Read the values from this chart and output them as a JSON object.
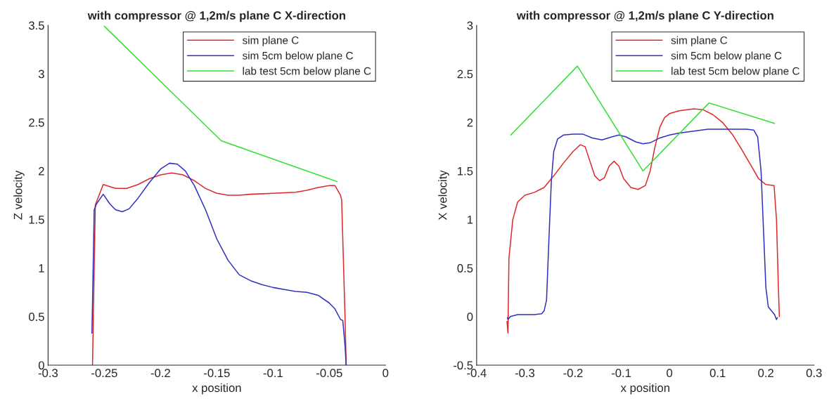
{
  "chart_data": [
    {
      "type": "line",
      "title": "with compressor @ 1,2m/s plane C X-direction",
      "xlabel": "x position",
      "ylabel": "Z velocity",
      "xlim": [
        -0.3,
        0
      ],
      "xticks": [
        -0.3,
        -0.25,
        -0.2,
        -0.15,
        -0.1,
        -0.05,
        0
      ],
      "ylim": [
        0,
        3.5
      ],
      "yticks": [
        0,
        0.5,
        1,
        1.5,
        2,
        2.5,
        3,
        3.5
      ],
      "grid": false,
      "legend": "top right",
      "series": [
        {
          "name": "sim plane C",
          "color": "#dd2a2a",
          "x": [
            -0.2605,
            -0.258,
            -0.251,
            -0.24,
            -0.23,
            -0.22,
            -0.21,
            -0.2,
            -0.19,
            -0.18,
            -0.17,
            -0.16,
            -0.15,
            -0.14,
            -0.13,
            -0.12,
            -0.1,
            -0.08,
            -0.07,
            -0.06,
            -0.05,
            -0.045,
            -0.04,
            -0.039,
            -0.036,
            -0.035
          ],
          "values": [
            0,
            1.65,
            1.86,
            1.82,
            1.82,
            1.86,
            1.92,
            1.96,
            1.98,
            1.96,
            1.9,
            1.82,
            1.77,
            1.75,
            1.75,
            1.76,
            1.77,
            1.78,
            1.8,
            1.83,
            1.85,
            1.85,
            1.75,
            1.7,
            0.5,
            0
          ]
        },
        {
          "name": "sim 5cm below plane C",
          "color": "#3030c0",
          "x": [
            -0.261,
            -0.259,
            -0.257,
            -0.251,
            -0.245,
            -0.24,
            -0.234,
            -0.228,
            -0.22,
            -0.21,
            -0.2,
            -0.192,
            -0.185,
            -0.178,
            -0.17,
            -0.16,
            -0.15,
            -0.14,
            -0.13,
            -0.12,
            -0.11,
            -0.1,
            -0.09,
            -0.08,
            -0.07,
            -0.06,
            -0.05,
            -0.045,
            -0.04,
            -0.038,
            -0.036,
            -0.035
          ],
          "values": [
            0.33,
            1.6,
            1.66,
            1.76,
            1.66,
            1.6,
            1.58,
            1.61,
            1.72,
            1.88,
            2.02,
            2.08,
            2.07,
            2.0,
            1.85,
            1.6,
            1.3,
            1.08,
            0.93,
            0.87,
            0.83,
            0.8,
            0.78,
            0.76,
            0.75,
            0.72,
            0.64,
            0.58,
            0.47,
            0.46,
            0.2,
            0
          ]
        },
        {
          "name": "lab test 5cm below plane C",
          "color": "#30e030",
          "x": [
            -0.25,
            -0.146,
            -0.043
          ],
          "values": [
            3.49,
            2.31,
            1.89
          ]
        }
      ]
    },
    {
      "type": "line",
      "title": "with compressor @ 1,2m/s plane C Y-direction",
      "xlabel": "x position",
      "ylabel": "X velocity",
      "xlim": [
        -0.4,
        0.3
      ],
      "xticks": [
        -0.4,
        -0.3,
        -0.2,
        -0.1,
        0,
        0.1,
        0.2,
        0.3
      ],
      "ylim": [
        -0.5,
        3
      ],
      "yticks": [
        -0.5,
        0,
        0.5,
        1,
        1.5,
        2,
        2.5,
        3
      ],
      "grid": false,
      "legend": "top right",
      "series": [
        {
          "name": "sim plane C",
          "color": "#dd2a2a",
          "x": [
            -0.337,
            -0.335,
            -0.333,
            -0.325,
            -0.315,
            -0.3,
            -0.28,
            -0.26,
            -0.24,
            -0.22,
            -0.2,
            -0.185,
            -0.175,
            -0.165,
            -0.155,
            -0.145,
            -0.135,
            -0.125,
            -0.115,
            -0.105,
            -0.095,
            -0.08,
            -0.065,
            -0.05,
            -0.04,
            -0.03,
            -0.02,
            -0.01,
            0.0,
            0.02,
            0.05,
            0.07,
            0.09,
            0.11,
            0.13,
            0.15,
            0.17,
            0.185,
            0.2,
            0.217,
            0.222,
            0.226,
            0.228
          ],
          "values": [
            -0.05,
            -0.17,
            0.6,
            1.0,
            1.18,
            1.25,
            1.28,
            1.33,
            1.45,
            1.58,
            1.7,
            1.77,
            1.75,
            1.6,
            1.45,
            1.4,
            1.43,
            1.55,
            1.6,
            1.55,
            1.42,
            1.33,
            1.31,
            1.35,
            1.5,
            1.75,
            1.95,
            2.05,
            2.09,
            2.12,
            2.14,
            2.13,
            2.08,
            2.0,
            1.88,
            1.72,
            1.55,
            1.42,
            1.36,
            1.35,
            1.0,
            0.3,
            0
          ]
        },
        {
          "name": "sim 5cm below plane C",
          "color": "#3030c0",
          "x": [
            -0.336,
            -0.335,
            -0.33,
            -0.315,
            -0.3,
            -0.28,
            -0.265,
            -0.26,
            -0.255,
            -0.25,
            -0.245,
            -0.24,
            -0.232,
            -0.22,
            -0.2,
            -0.18,
            -0.16,
            -0.14,
            -0.12,
            -0.105,
            -0.09,
            -0.07,
            -0.055,
            -0.04,
            -0.02,
            0.0,
            0.02,
            0.05,
            0.08,
            0.12,
            0.16,
            0.175,
            0.183,
            0.19,
            0.195,
            0.2,
            0.205,
            0.21,
            0.218,
            0.222,
            0.224
          ],
          "values": [
            -0.01,
            -0.03,
            0.0,
            0.02,
            0.02,
            0.02,
            0.03,
            0.06,
            0.17,
            0.8,
            1.4,
            1.7,
            1.83,
            1.87,
            1.88,
            1.88,
            1.84,
            1.82,
            1.85,
            1.87,
            1.85,
            1.8,
            1.78,
            1.79,
            1.84,
            1.87,
            1.89,
            1.91,
            1.93,
            1.93,
            1.93,
            1.92,
            1.85,
            1.5,
            0.9,
            0.3,
            0.1,
            0.07,
            0.02,
            -0.03,
            -0.01
          ]
        },
        {
          "name": "lab test 5cm below plane C",
          "color": "#30e030",
          "x": [
            -0.329,
            -0.191,
            -0.055,
            0.082,
            0.218
          ],
          "values": [
            1.87,
            2.58,
            1.5,
            2.2,
            1.99
          ]
        }
      ]
    }
  ]
}
